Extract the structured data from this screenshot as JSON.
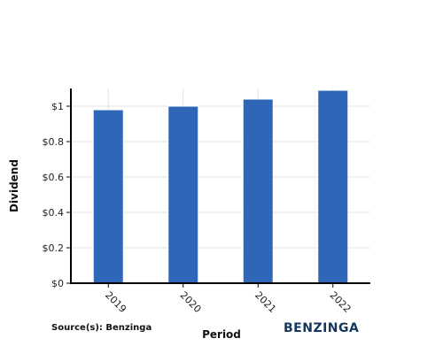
{
  "chart_data": {
    "type": "bar",
    "title": "",
    "xlabel": "Period",
    "ylabel": "Dividend",
    "categories": [
      "2019",
      "2020",
      "2021",
      "2022"
    ],
    "values": [
      0.98,
      1.0,
      1.04,
      1.09
    ],
    "ylim": [
      0,
      1.1
    ],
    "y_ticks": [
      0,
      0.2,
      0.4,
      0.6,
      0.8,
      1
    ],
    "y_tick_labels": [
      "$0",
      "$0.2",
      "$0.4",
      "$0.6",
      "$0.8",
      "$1"
    ],
    "grid": true,
    "bar_color": "#2e67b8"
  },
  "footer": {
    "source": "Source(s): Benzinga",
    "brand": "BENZINGA"
  }
}
